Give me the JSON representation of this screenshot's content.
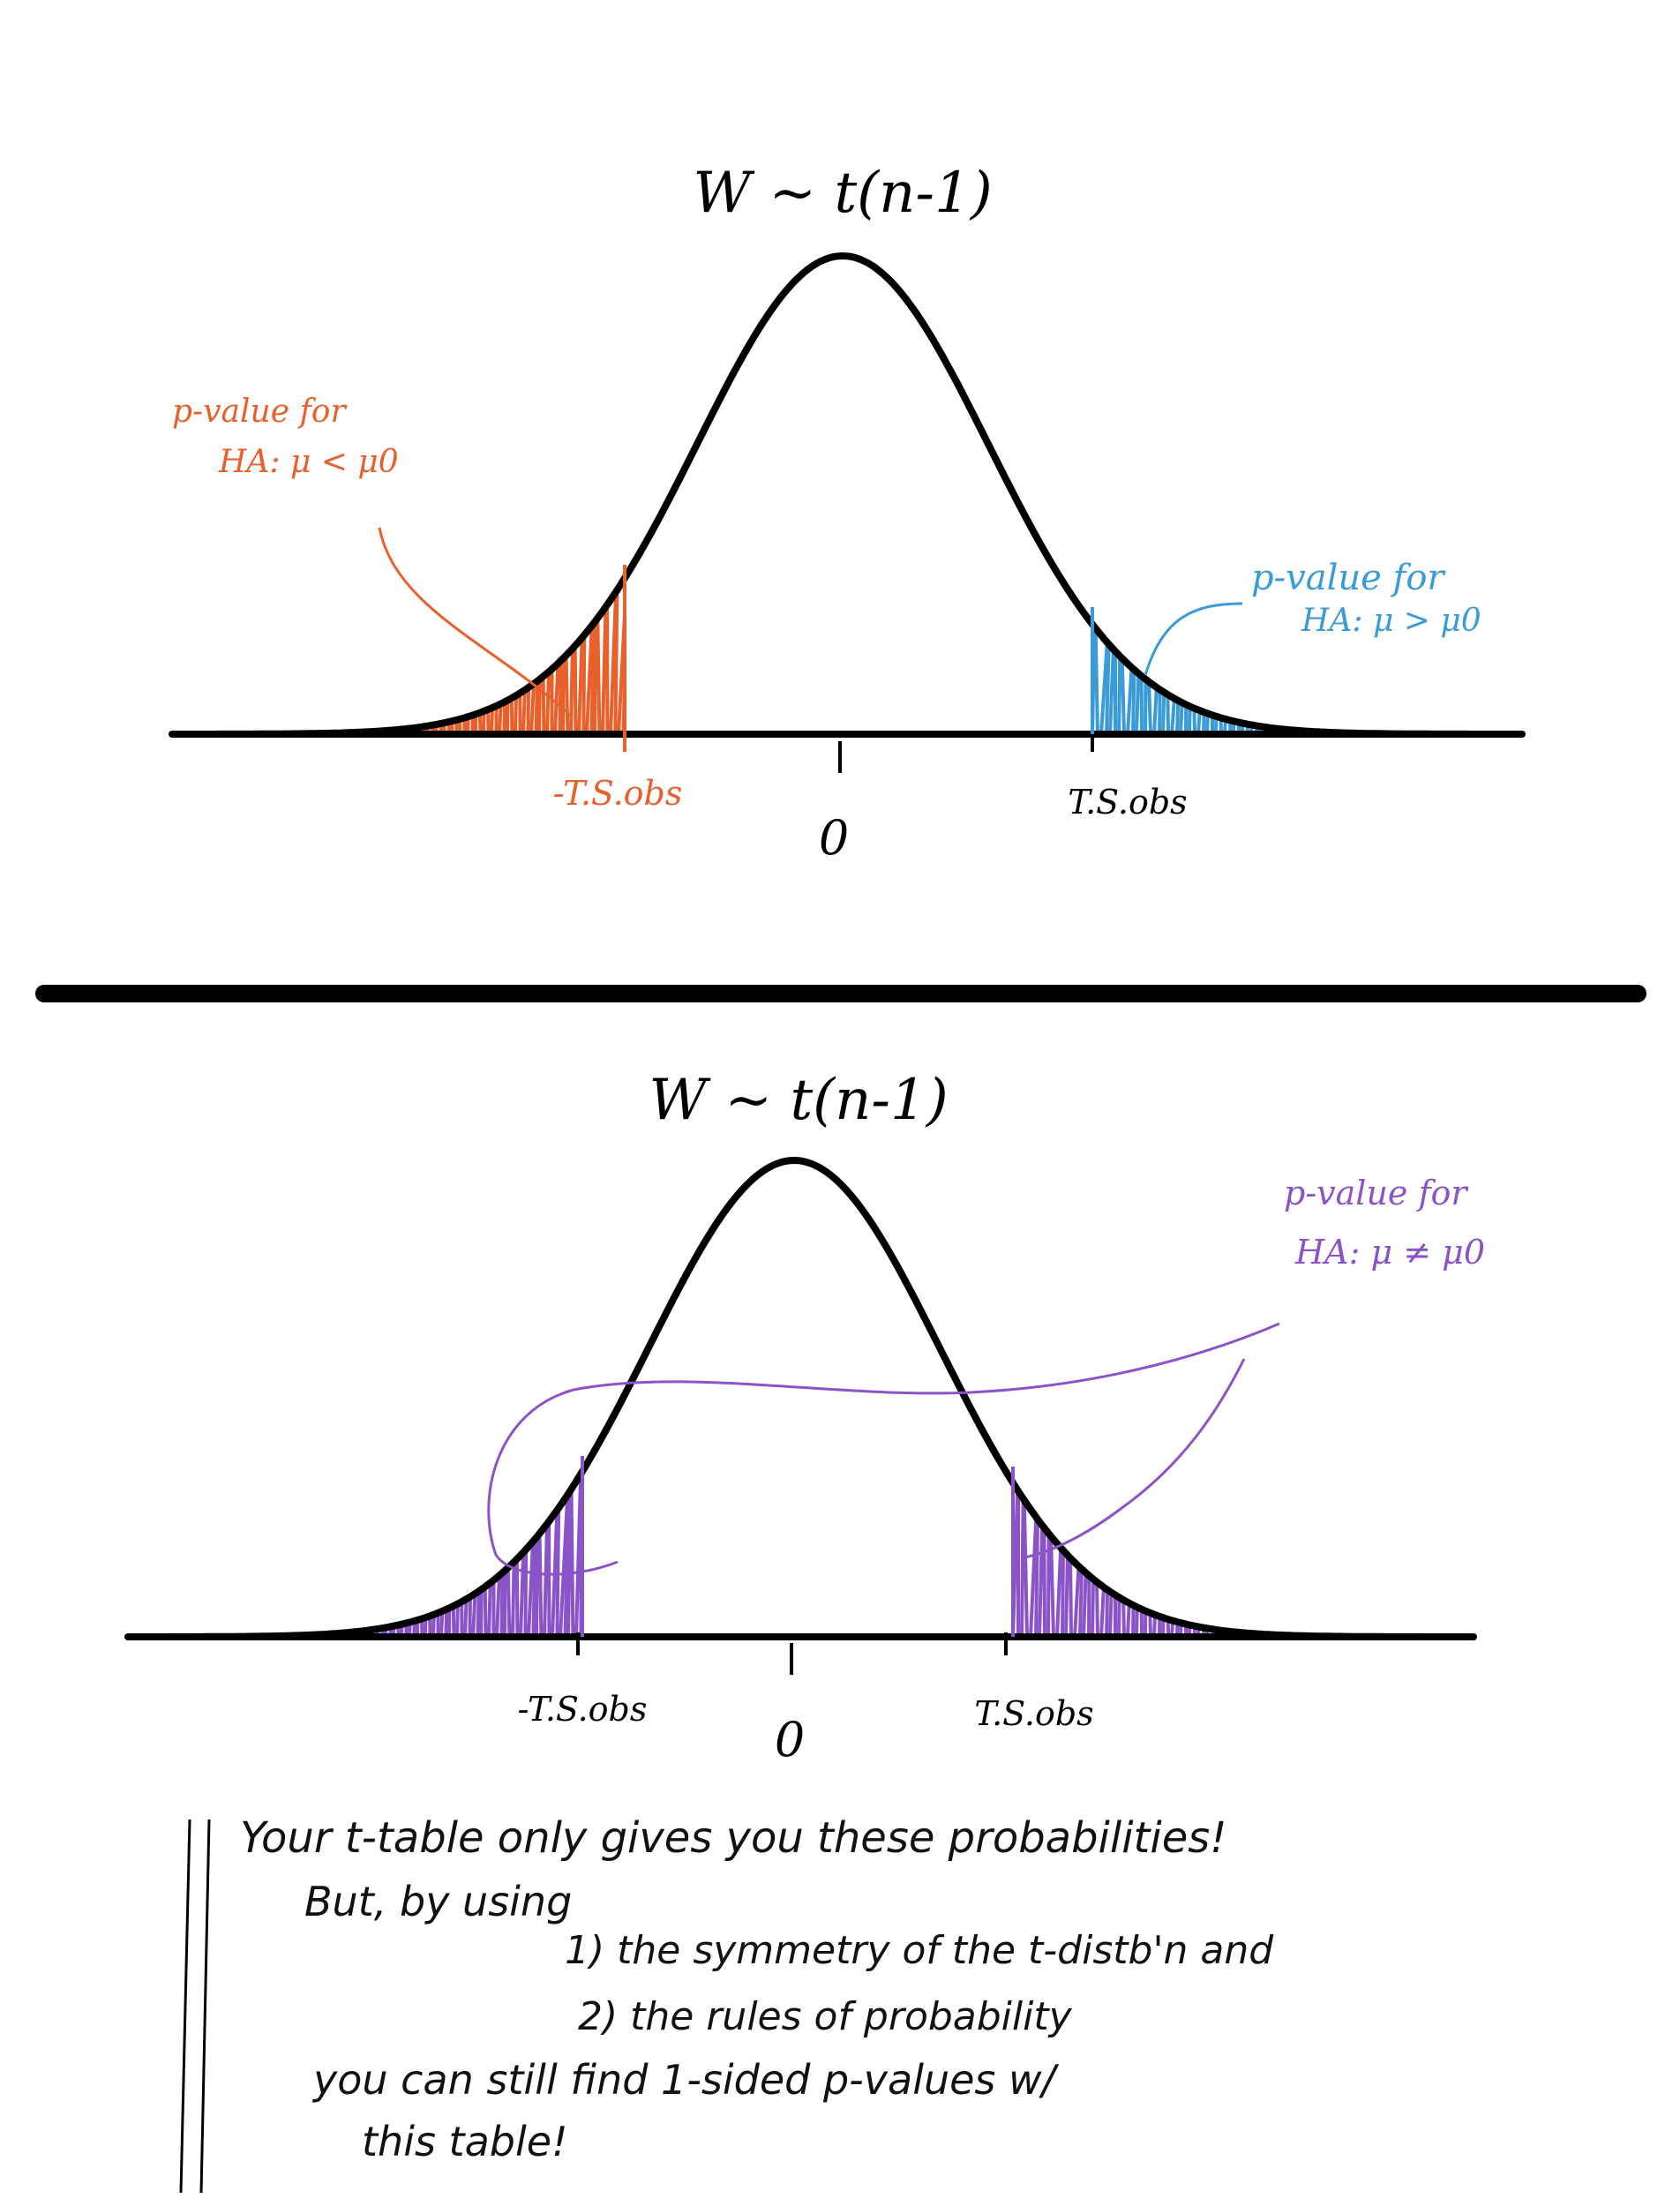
{
  "colors": {
    "ink": "#000000",
    "orange": "#e8602c",
    "blue": "#3a9bd6",
    "purple": "#8a54c8"
  },
  "top_panel": {
    "title": "W ~ t(n-1)",
    "zero_label": "0",
    "neg_label": "-T.S.obs",
    "pos_label": "T.S.obs",
    "left_annotation": {
      "line1": "p-value for",
      "line2": "HA: μ < μ0"
    },
    "right_annotation": {
      "line1": "p-value for",
      "line2": "HA: μ > μ0"
    }
  },
  "bottom_panel": {
    "title": "W ~ t(n-1)",
    "zero_label": "0",
    "neg_label": "-T.S.obs",
    "pos_label": "T.S.obs",
    "annotation": {
      "line1": "p-value for",
      "line2": "HA: μ ≠ μ0"
    }
  },
  "note": {
    "line1": "Your t-table only gives you these probabilities!",
    "line2": "But, by using",
    "line3": "1) the symmetry of the t-distb'n and",
    "line4": "2) the rules of probability",
    "line5": "you can still find 1-sided p-values w/",
    "line6": "this table!"
  }
}
